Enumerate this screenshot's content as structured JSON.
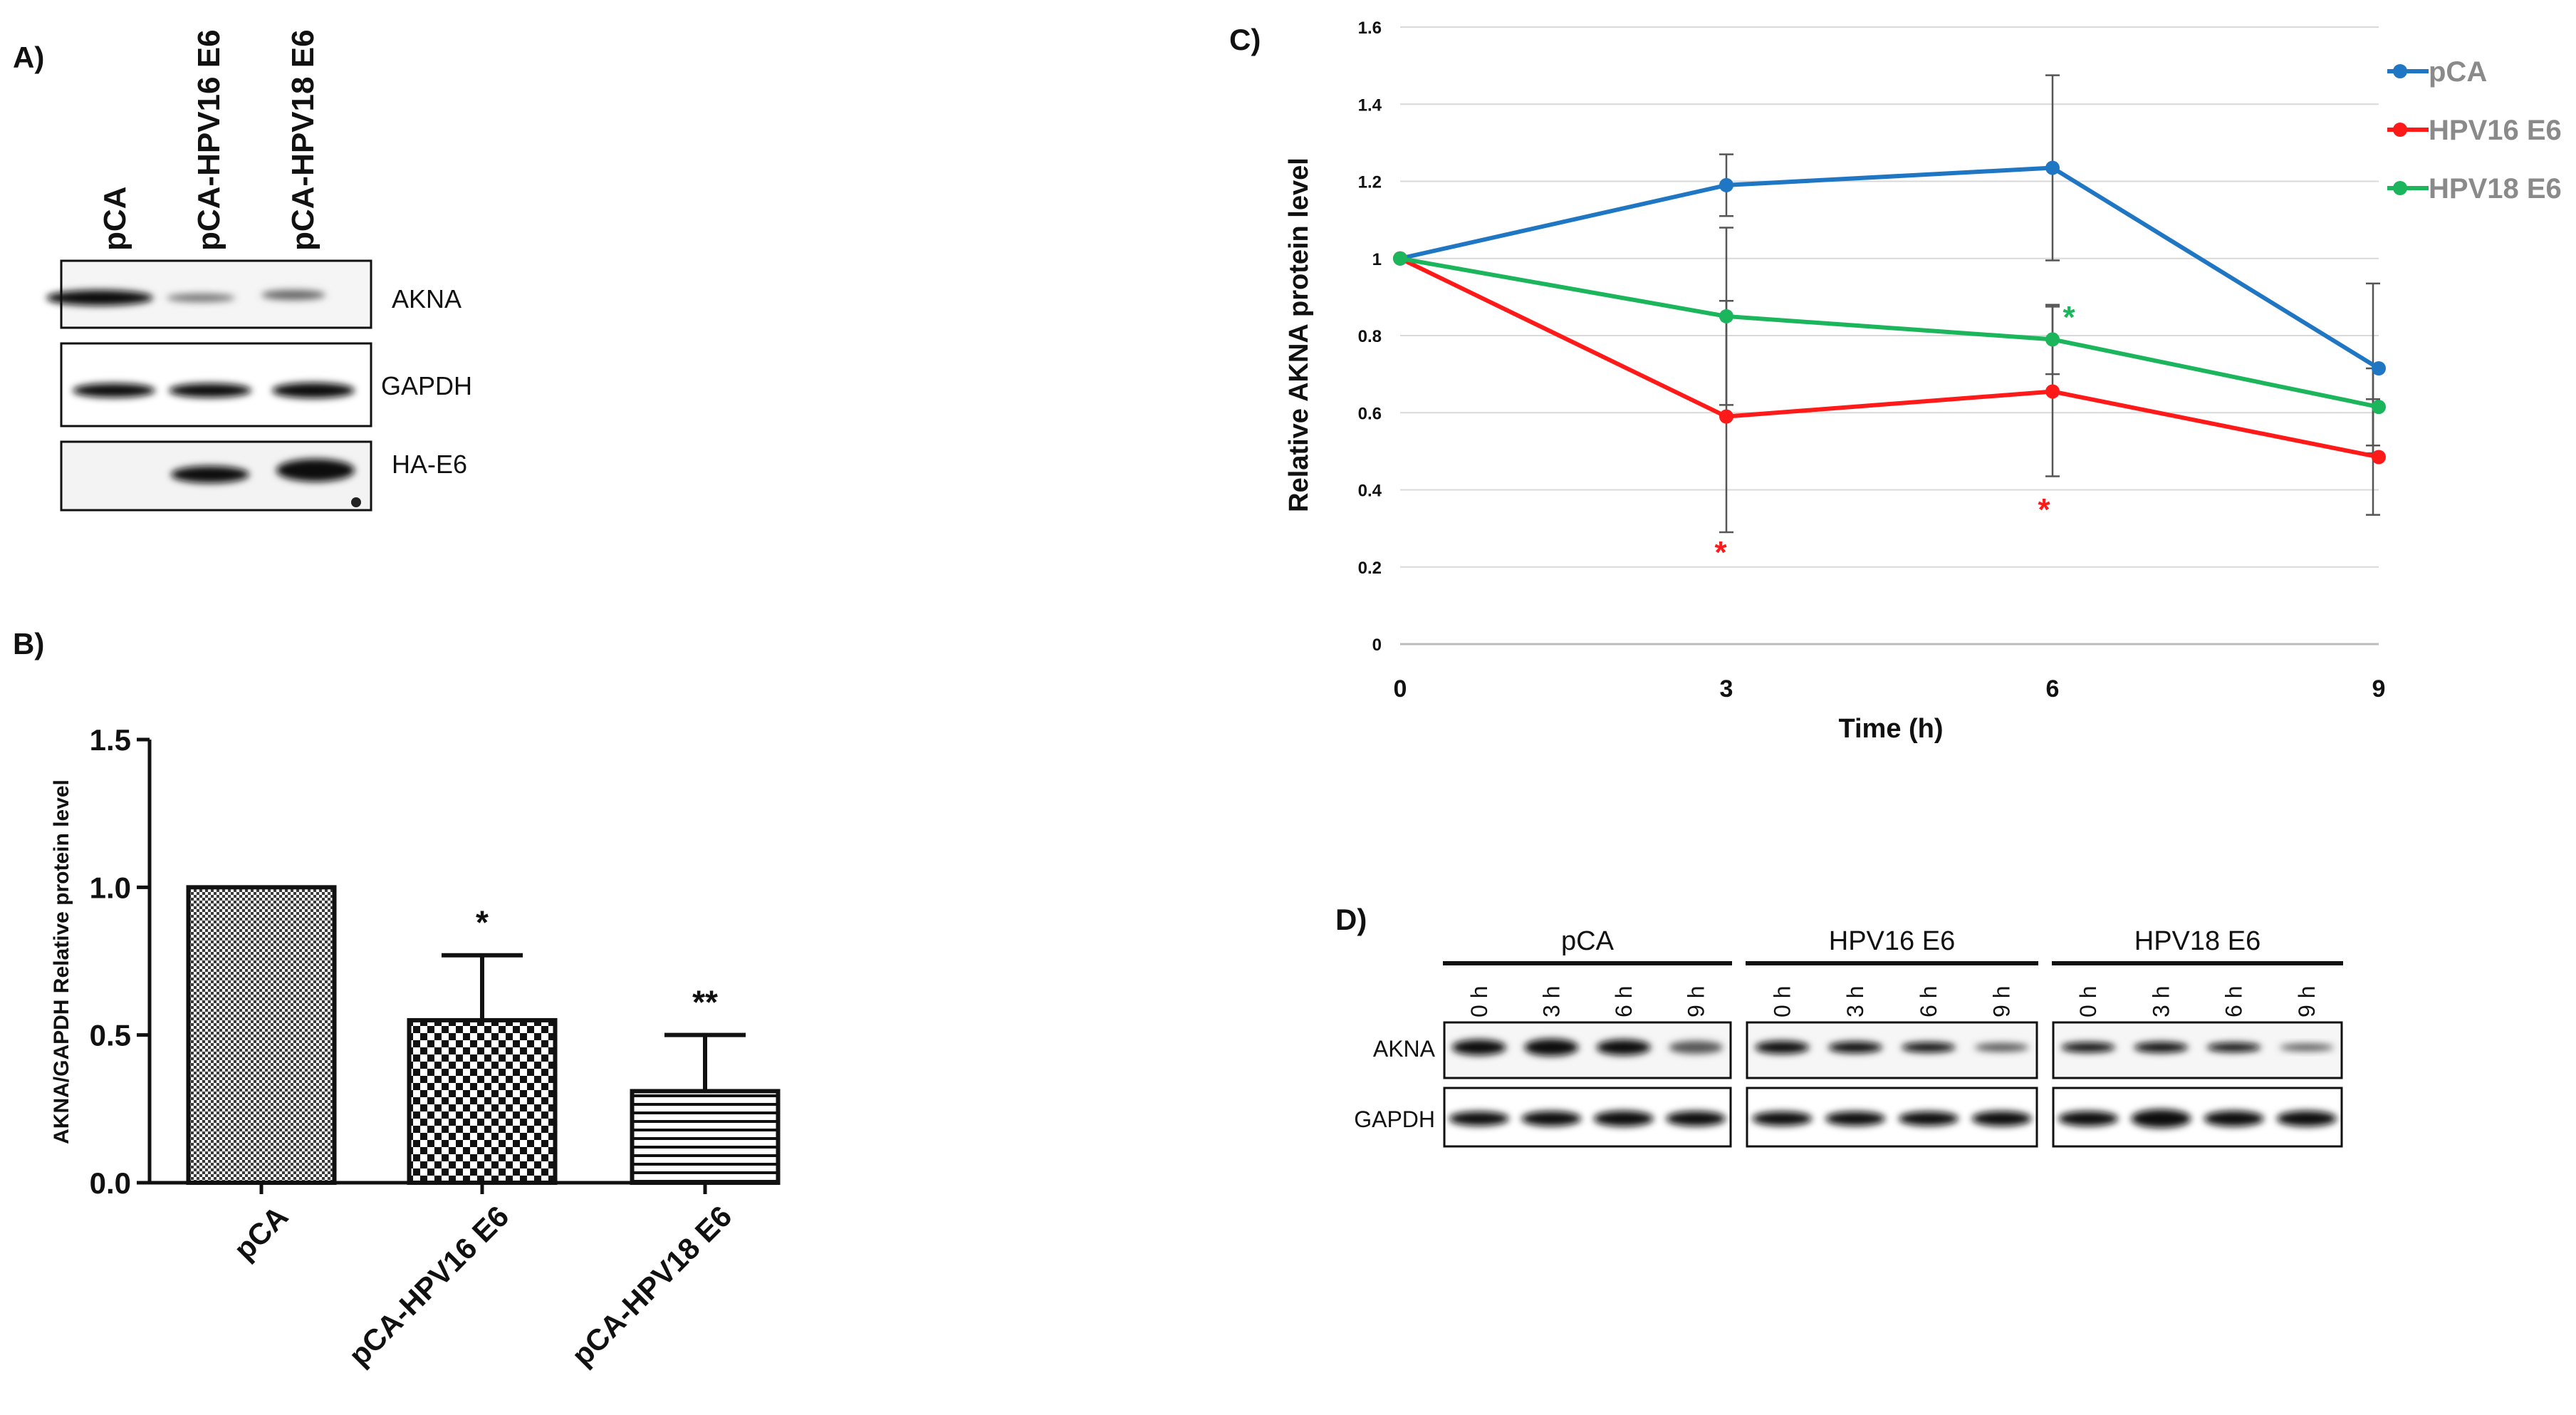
{
  "panels": {
    "A": {
      "label": "A)",
      "lanes": [
        "pCA",
        "pCA-HPV16 E6",
        "pCA-HPV18 E6"
      ],
      "blots": [
        "AKNA",
        "GAPDH",
        "HA-E6"
      ]
    },
    "B": {
      "label": "B)",
      "ylabel": "AKNA/GAPDH Relative protein level",
      "yticks": [
        "0.0",
        "0.5",
        "1.0",
        "1.5"
      ],
      "ylim": [
        0,
        1.5
      ],
      "categories": [
        "pCA",
        "pCA-HPV16 E6",
        "pCA-HPV18 E6"
      ],
      "values": [
        1.0,
        0.55,
        0.31
      ],
      "errors": [
        0,
        0.22,
        0.19
      ],
      "significance": [
        "",
        "*",
        "**"
      ]
    },
    "C": {
      "label": "C)",
      "ylabel": "Relative AKNA protein level",
      "xlabel": "Time (h)",
      "yticks": [
        "0",
        "0.2",
        "0.4",
        "0.6",
        "0.8",
        "1",
        "1.2",
        "1.4",
        "1.6"
      ],
      "xticks": [
        "0",
        "3",
        "6",
        "9"
      ],
      "legend": [
        "pCA",
        "HPV16 E6",
        "HPV18 E6"
      ],
      "stars": [
        "*",
        "*",
        "*"
      ]
    },
    "D": {
      "label": "D)",
      "groups": [
        "pCA",
        "HPV16 E6",
        "HPV18 E6"
      ],
      "timepoints": [
        "0 h",
        "3 h",
        "6 h",
        "9 h"
      ],
      "blots": [
        "AKNA",
        "GAPDH"
      ]
    }
  },
  "chart_data": [
    {
      "type": "bar",
      "title": "",
      "xlabel": "",
      "ylabel": "AKNA/GAPDH Relative protein level",
      "categories": [
        "pCA",
        "pCA-HPV16 E6",
        "pCA-HPV18 E6"
      ],
      "values": [
        1.0,
        0.55,
        0.31
      ],
      "error_bars": [
        0,
        0.22,
        0.19
      ],
      "ylim": [
        0,
        1.5
      ],
      "annotations": [
        "",
        "*",
        "**"
      ]
    },
    {
      "type": "line",
      "title": "",
      "xlabel": "Time (h)",
      "ylabel": "Relative AKNA protein level",
      "x": [
        0,
        3,
        6,
        9
      ],
      "ylim": [
        0,
        1.6
      ],
      "grid": true,
      "legend_position": "top-right",
      "series": [
        {
          "name": "pCA",
          "color": "#1f77c4",
          "values": [
            1.0,
            1.19,
            1.235,
            0.715
          ],
          "errors": [
            0,
            0.08,
            0.24,
            0.22
          ]
        },
        {
          "name": "HPV16 E6",
          "color": "#ff1a1a",
          "values": [
            1.0,
            0.59,
            0.655,
            0.485
          ],
          "errors": [
            0,
            0.3,
            0.22,
            0.15
          ]
        },
        {
          "name": "HPV18 E6",
          "color": "#1bb55c",
          "values": [
            1.0,
            0.85,
            0.79,
            0.615
          ],
          "errors": [
            0,
            0.23,
            0.09,
            0.1
          ]
        }
      ],
      "significance_marks": [
        {
          "x": 3,
          "series": "HPV16 E6",
          "mark": "*"
        },
        {
          "x": 6,
          "series": "HPV16 E6",
          "mark": "*"
        },
        {
          "x": 6,
          "series": "HPV18 E6",
          "mark": "*"
        }
      ]
    }
  ]
}
